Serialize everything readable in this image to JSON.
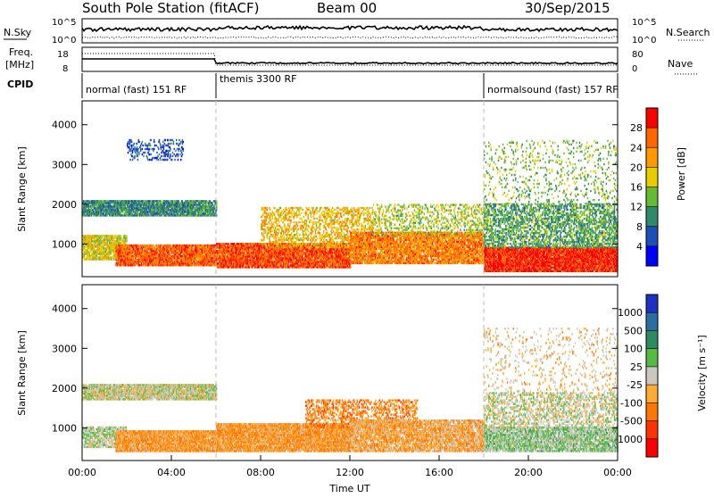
{
  "header": {
    "station": "South Pole Station (fitACF)",
    "beam": "Beam 00",
    "date": "30/Sep/2015"
  },
  "top_panels": {
    "nsky_label": "N.Sky",
    "nsearch_label": "N.Search",
    "nsky_ticks": [
      "10^5",
      "10^0"
    ],
    "nsearch_ticks": [
      "10^5",
      "10^0"
    ],
    "freq_label_1": "Freq.",
    "freq_label_2": "[MHz]",
    "freq_ticks": [
      "18",
      "8"
    ],
    "nave_label": "Nave",
    "nave_ticks": [
      "80",
      "0"
    ],
    "cpid_label": "CPID",
    "cpid_segments": [
      {
        "label": "normal (fast) 151 RF",
        "start_h": 0,
        "end_h": 6
      },
      {
        "label": "themis 3300 RF",
        "start_h": 6,
        "end_h": 18
      },
      {
        "label": "normalsound (fast) 157 RF",
        "start_h": 18,
        "end_h": 24
      }
    ]
  },
  "axes": {
    "ylabel": "Slant Range [km]",
    "yticks": [
      "1000",
      "2000",
      "3000",
      "4000"
    ],
    "xlabel": "Time UT",
    "xticks": [
      "00:00",
      "04:00",
      "08:00",
      "12:00",
      "16:00",
      "20:00",
      "00:00"
    ]
  },
  "colorbars": {
    "power": {
      "label": "Power [dB]",
      "ticks": [
        "4",
        "8",
        "12",
        "16",
        "20",
        "24",
        "28"
      ],
      "colors": [
        "#0000ff",
        "#1e4fb4",
        "#2f8a6a",
        "#66bb33",
        "#e6cc00",
        "#ff9900",
        "#ff6600",
        "#ff0000"
      ]
    },
    "velocity": {
      "label": "Velocity [m s⁻¹]",
      "ticks": [
        "1000",
        "500",
        "100",
        "25",
        "-25",
        "-100",
        "-500",
        "-1000"
      ],
      "colors": [
        "#2030c0",
        "#2a6fa0",
        "#2e8a60",
        "#55bb44",
        "#c8c8c0",
        "#ffaa33",
        "#ff7700",
        "#ff3300",
        "#ff0000"
      ]
    }
  },
  "chart_data": [
    {
      "type": "heatmap",
      "name": "Power",
      "xlabel": "Time UT",
      "ylabel": "Slant Range [km]",
      "xlim_hours": [
        0,
        24
      ],
      "ylim_km": [
        180,
        4600
      ],
      "colorbar": "Power [dB]",
      "clim": [
        0,
        32
      ],
      "regions": [
        {
          "t0": 0.0,
          "t1": 6.0,
          "r0": 1700,
          "r1": 2100,
          "val": 10,
          "density": 0.8
        },
        {
          "t0": 0.0,
          "t1": 2.0,
          "r0": 600,
          "r1": 1200,
          "val": 18,
          "density": 0.7
        },
        {
          "t0": 1.5,
          "t1": 6.0,
          "r0": 450,
          "r1": 950,
          "val": 26,
          "density": 0.85
        },
        {
          "t0": 2.0,
          "t1": 4.5,
          "r0": 3100,
          "r1": 3600,
          "val": 6,
          "density": 0.25
        },
        {
          "t0": 6.0,
          "t1": 12.0,
          "r0": 400,
          "r1": 1000,
          "val": 27,
          "density": 0.85
        },
        {
          "t0": 8.0,
          "t1": 13.0,
          "r0": 900,
          "r1": 1900,
          "val": 20,
          "density": 0.35
        },
        {
          "t0": 12.0,
          "t1": 18.0,
          "r0": 500,
          "r1": 1300,
          "val": 24,
          "density": 0.75
        },
        {
          "t0": 13.0,
          "t1": 18.0,
          "r0": 1200,
          "r1": 2000,
          "val": 16,
          "density": 0.25
        },
        {
          "t0": 18.0,
          "t1": 24.0,
          "r0": 300,
          "r1": 900,
          "val": 29,
          "density": 0.9
        },
        {
          "t0": 18.0,
          "t1": 24.0,
          "r0": 900,
          "r1": 2000,
          "val": 12,
          "density": 0.45
        },
        {
          "t0": 18.0,
          "t1": 24.0,
          "r0": 2000,
          "r1": 3600,
          "val": 14,
          "density": 0.1
        }
      ]
    },
    {
      "type": "heatmap",
      "name": "Velocity",
      "xlabel": "Time UT",
      "ylabel": "Slant Range [km]",
      "xlim_hours": [
        0,
        24
      ],
      "ylim_km": [
        180,
        4600
      ],
      "colorbar": "Velocity [m s⁻¹]",
      "clim": [
        -1000,
        1000
      ],
      "regions": [
        {
          "t0": 0.0,
          "t1": 6.0,
          "r0": 1700,
          "r1": 2100,
          "val": 0,
          "density": 0.8
        },
        {
          "t0": 0.0,
          "t1": 2.0,
          "r0": 500,
          "r1": 1000,
          "val": 80,
          "density": 0.6
        },
        {
          "t0": 1.5,
          "t1": 6.0,
          "r0": 400,
          "r1": 900,
          "val": -300,
          "density": 0.85
        },
        {
          "t0": 6.0,
          "t1": 12.0,
          "r0": 400,
          "r1": 1100,
          "val": -300,
          "density": 0.85
        },
        {
          "t0": 10.0,
          "t1": 15.0,
          "r0": 1000,
          "r1": 1700,
          "val": -400,
          "density": 0.35
        },
        {
          "t0": 12.0,
          "t1": 18.0,
          "r0": 400,
          "r1": 1200,
          "val": -250,
          "density": 0.7
        },
        {
          "t0": 18.0,
          "t1": 24.0,
          "r0": 400,
          "r1": 1000,
          "val": 120,
          "density": 0.7
        },
        {
          "t0": 18.0,
          "t1": 24.0,
          "r0": 1000,
          "r1": 1900,
          "val": 0,
          "density": 0.35
        },
        {
          "t0": 18.0,
          "t1": 24.0,
          "r0": 1900,
          "r1": 3500,
          "val": -150,
          "density": 0.08
        }
      ]
    }
  ]
}
